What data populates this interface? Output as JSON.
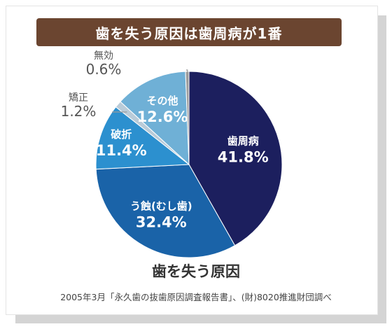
{
  "banner": {
    "title": "歯を失う原因は歯周病が1番"
  },
  "chart_data": {
    "type": "pie",
    "title": "歯を失う原因",
    "source": "2005年3月「永久歯の抜歯原因調査報告書」、(財)8020推進財団調べ",
    "slices": [
      {
        "label": "歯周病",
        "value": 41.8,
        "display": "41.8%",
        "color": "#1c1f5e",
        "text_color": "#ffffff"
      },
      {
        "label": "う蝕(むし歯)",
        "value": 32.4,
        "display": "32.4%",
        "color": "#1a63a8",
        "text_color": "#ffffff"
      },
      {
        "label": "破折",
        "value": 11.4,
        "display": "11.4%",
        "color": "#2c90cf",
        "text_color": "#ffffff"
      },
      {
        "label": "矯正",
        "value": 1.2,
        "display": "1.2%",
        "color": "#b9cbd8",
        "text_color": "#555555"
      },
      {
        "label": "その他",
        "value": 12.6,
        "display": "12.6%",
        "color": "#6fb0d6",
        "text_color": "#ffffff"
      },
      {
        "label": "無効",
        "value": 0.6,
        "display": "0.6%",
        "color": "#9e9e9e",
        "text_color": "#555555"
      }
    ]
  }
}
